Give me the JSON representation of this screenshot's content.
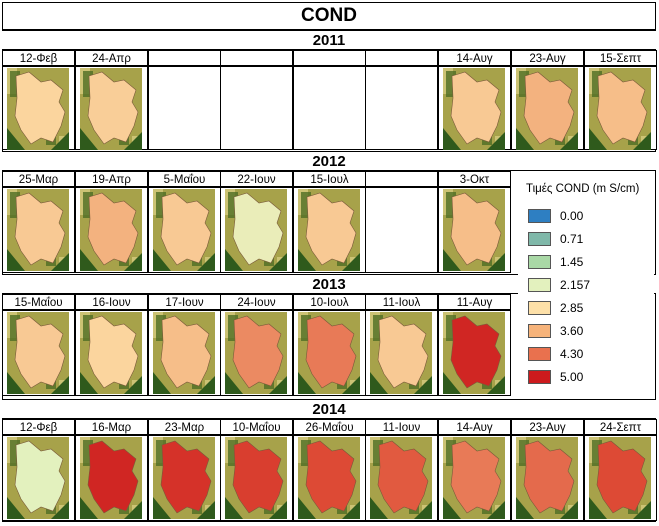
{
  "title": "COND",
  "years": [
    "2011",
    "2012",
    "2013",
    "2014"
  ],
  "rows": [
    {
      "labels": [
        "12-Φεβ",
        "24-Απρ",
        "",
        "",
        "",
        "",
        "14-Αυγ",
        "23-Αυγ",
        "15-Σεπτ"
      ],
      "levels": [
        0.25,
        0.28,
        null,
        null,
        null,
        null,
        0.3,
        0.4,
        0.35
      ]
    },
    {
      "labels": [
        "25-Μαρ",
        "19-Απρ",
        "5-Μαΐου",
        "22-Ιουν",
        "15-Ιουλ",
        "",
        "3-Οκτ"
      ],
      "levels": [
        0.3,
        0.4,
        0.3,
        0.05,
        0.3,
        null,
        0.35
      ]
    },
    {
      "labels": [
        "15-Μαΐου",
        "16-Ιουν",
        "17-Ιουν",
        "24-Ιουν",
        "10-Ιουλ",
        "11-Ιουλ",
        "11-Αυγ"
      ],
      "levels": [
        0.3,
        0.25,
        0.35,
        0.6,
        0.65,
        0.3,
        0.95
      ]
    },
    {
      "labels": [
        "12-Φεβ",
        "16-Μαρ",
        "23-Μαρ",
        "10-Μαΐου",
        "26-Μαΐου",
        "11-Ιουν",
        "14-Αυγ",
        "23-Αυγ",
        "24-Σεπτ"
      ],
      "levels": [
        0.0,
        0.95,
        0.9,
        0.85,
        0.8,
        0.75,
        0.65,
        0.7,
        0.8
      ]
    }
  ],
  "legend": {
    "title": "Τιμές COND (m S/cm)",
    "items": [
      {
        "label": "0.00",
        "color": "#2e7fc2"
      },
      {
        "label": "0.71",
        "color": "#7fb8a9"
      },
      {
        "label": "1.45",
        "color": "#a9d8a6"
      },
      {
        "label": "2.157",
        "color": "#e3f1be"
      },
      {
        "label": "2.85",
        "color": "#fde0a8"
      },
      {
        "label": "3.60",
        "color": "#f6b37a"
      },
      {
        "label": "4.30",
        "color": "#e9714e"
      },
      {
        "label": "5.00",
        "color": "#cc1a1d"
      }
    ]
  }
}
